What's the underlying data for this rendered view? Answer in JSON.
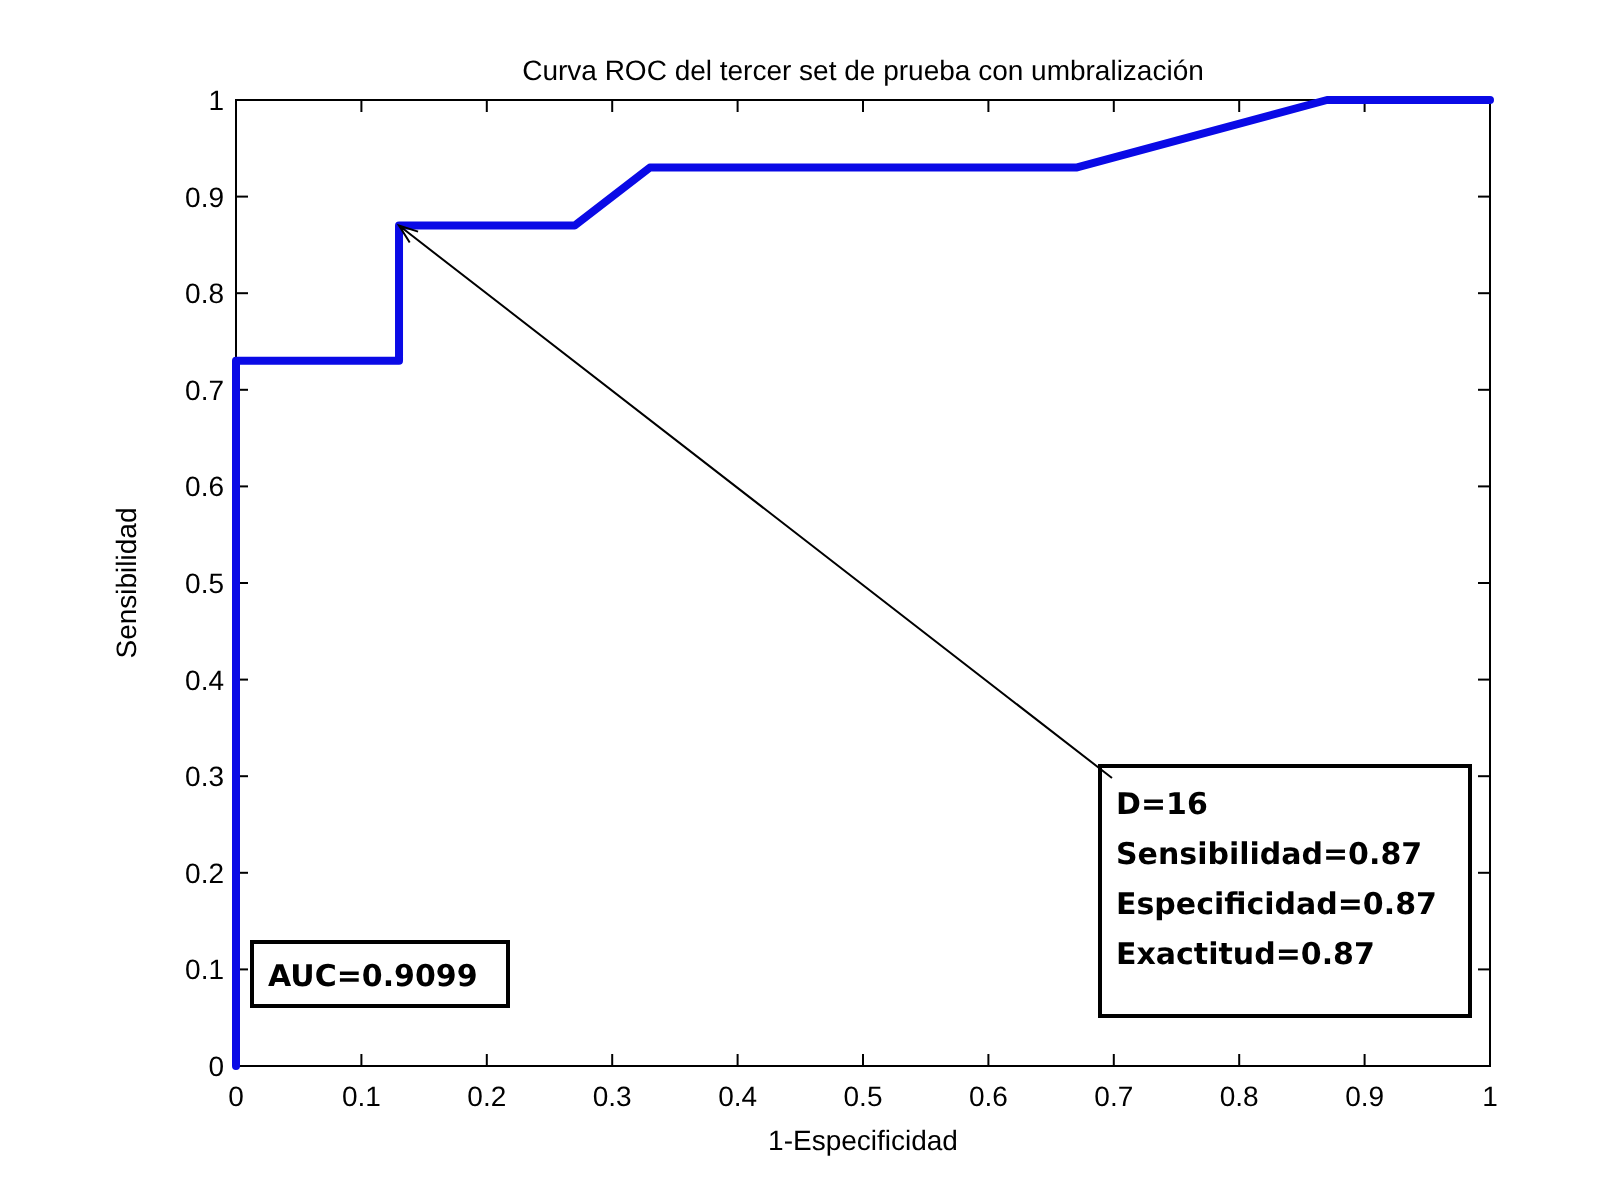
{
  "chart_data": {
    "type": "line",
    "title": "Curva ROC del tercer set de prueba con umbralización",
    "xlabel": "1-Especificidad",
    "ylabel": "Sensibilidad",
    "x": [
      0,
      0,
      0.13,
      0.13,
      0.27,
      0.33,
      0.67,
      0.87,
      1
    ],
    "series": [
      {
        "color": "#0a0ae6",
        "values": [
          0,
          0.73,
          0.73,
          0.87,
          0.87,
          0.93,
          0.93,
          1,
          1
        ]
      }
    ],
    "xlim": [
      0,
      1
    ],
    "xticks": [
      0,
      0.1,
      0.2,
      0.3,
      0.4,
      0.5,
      0.6,
      0.7,
      0.8,
      0.9,
      1
    ],
    "ylim": [
      0,
      1
    ],
    "yticks": [
      0,
      0.1,
      0.2,
      0.3,
      0.4,
      0.5,
      0.6,
      0.7,
      0.8,
      0.9,
      1
    ],
    "grid": false,
    "legend": false,
    "marker": "none",
    "line_style": "solid",
    "annotations": [
      {
        "text": "D=16\nSensibilidad=0.87\nEspecificidad=0.87\nExactitud=0.87",
        "x": 0.13,
        "y": 0.87
      },
      "AUC=0.9099"
    ]
  }
}
